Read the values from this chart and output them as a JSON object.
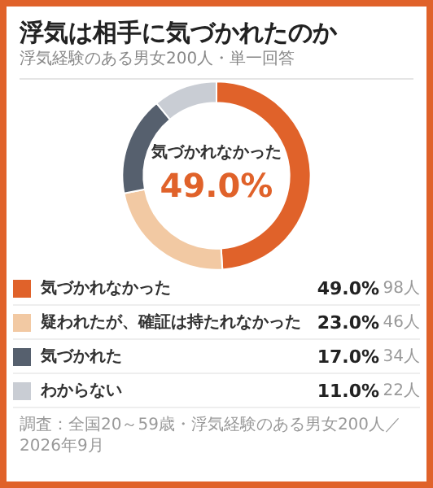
{
  "chart_data": {
    "type": "donut",
    "title": "浮気は相手に気づかれたのか",
    "subtitle": "浮気経験のある男女200人・単一回答",
    "categories": [
      "気づかれなかった",
      "疑われたが、確証は持たれなかった",
      "気づかれた",
      "わからない"
    ],
    "values": [
      49,
      23,
      17,
      11
    ],
    "colors": [
      "#e0622a",
      "#f2c9a3",
      "#56606e",
      "#c9cdd4"
    ],
    "value_labels": [
      "49.0%",
      "23.0%",
      "17.0%",
      "11.0%"
    ],
    "annotations": [
      "98人",
      "46人",
      "34人",
      "22人",
      "調査：全国20～59歳・浮気経験のある男女200人／2026年9月"
    ],
    "legend": "bottom"
  }
}
